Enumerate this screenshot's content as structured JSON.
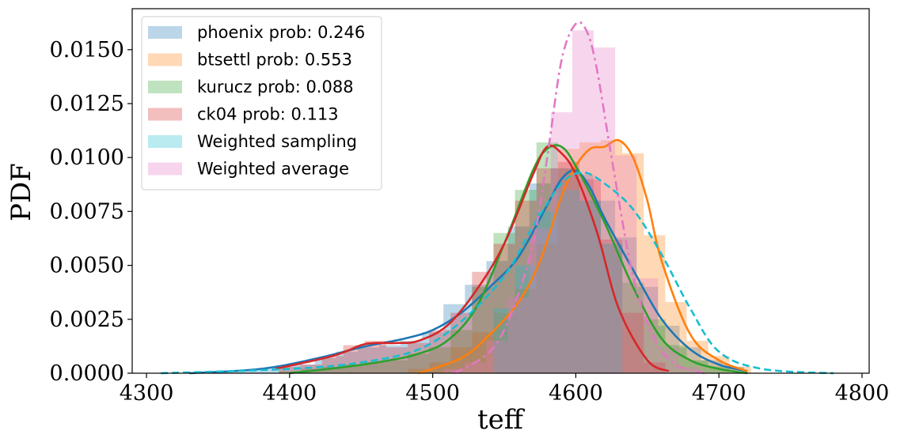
{
  "chart_data": {
    "type": "histogram+kde",
    "xlabel": "teff",
    "ylabel": "PDF",
    "xlim": [
      4290,
      4805
    ],
    "ylim": [
      0,
      0.0169
    ],
    "xticks": [
      "4300",
      "4400",
      "4500",
      "4600",
      "4700",
      "4800"
    ],
    "yticks": [
      "0.0000",
      "0.0025",
      "0.0050",
      "0.0075",
      "0.0100",
      "0.0125",
      "0.0150"
    ],
    "grid": false,
    "legend_position": "top-left",
    "series": [
      {
        "name": "phoenix prob: 0.246",
        "color": "#1f77b4",
        "hist": {
          "x": [
            4350,
            4365,
            4380,
            4395,
            4410,
            4425,
            4440,
            4455,
            4470,
            4485,
            4500,
            4515,
            4530,
            4545,
            4560,
            4575,
            4590,
            4605,
            4620,
            4635,
            4650,
            4665,
            4680,
            4695,
            4710
          ],
          "y": [
            0.0001,
            0.0001,
            0.0002,
            0.0003,
            0.0004,
            0.0007,
            0.001,
            0.0012,
            0.0013,
            0.0015,
            0.0019,
            0.0032,
            0.0041,
            0.0052,
            0.0068,
            0.0088,
            0.0095,
            0.0092,
            0.008,
            0.0063,
            0.004,
            0.0022,
            0.0012,
            0.0006,
            0.0003
          ]
        },
        "kde": {
          "x": [
            4330,
            4380,
            4420,
            4450,
            4480,
            4500,
            4520,
            4540,
            4560,
            4580,
            4590,
            4600,
            4610,
            4620,
            4640,
            4660,
            4680,
            4700,
            4720
          ],
          "y": [
            0.0,
            0.0002,
            0.0007,
            0.0012,
            0.0016,
            0.002,
            0.0028,
            0.004,
            0.0054,
            0.0078,
            0.009,
            0.0094,
            0.0086,
            0.0072,
            0.0048,
            0.0025,
            0.0011,
            0.0004,
            0.0001
          ]
        }
      },
      {
        "name": "btsettl prob: 0.553",
        "color": "#ff7f0e",
        "hist": {
          "x": [
            4490,
            4505,
            4520,
            4535,
            4550,
            4565,
            4580,
            4595,
            4610,
            4625,
            4640,
            4655,
            4670,
            4685,
            4700,
            4715
          ],
          "y": [
            0.0002,
            0.0005,
            0.0012,
            0.0019,
            0.0028,
            0.0039,
            0.006,
            0.0104,
            0.0107,
            0.0108,
            0.0102,
            0.0064,
            0.0033,
            0.0015,
            0.0008,
            0.0003
          ]
        },
        "kde": {
          "x": [
            4490,
            4520,
            4540,
            4560,
            4575,
            4590,
            4600,
            4610,
            4620,
            4630,
            4640,
            4650,
            4660,
            4680,
            4700,
            4720
          ],
          "y": [
            0.0,
            0.0007,
            0.0018,
            0.0033,
            0.0052,
            0.0082,
            0.0096,
            0.0104,
            0.0105,
            0.0108,
            0.01,
            0.008,
            0.0052,
            0.0018,
            0.0006,
            0.0001
          ]
        }
      },
      {
        "name": "kurucz prob: 0.088",
        "color": "#2ca02c",
        "hist": {
          "x": [
            4400,
            4415,
            4430,
            4445,
            4460,
            4475,
            4490,
            4505,
            4520,
            4535,
            4550,
            4565,
            4580,
            4595,
            4610,
            4625,
            4640,
            4655,
            4670,
            4685,
            4700
          ],
          "y": [
            0.0001,
            0.0002,
            0.0003,
            0.0004,
            0.0005,
            0.0006,
            0.0009,
            0.0012,
            0.002,
            0.004,
            0.0065,
            0.0085,
            0.0107,
            0.0095,
            0.008,
            0.006,
            0.0042,
            0.0025,
            0.0013,
            0.0006,
            0.0003
          ]
        },
        "kde": {
          "x": [
            4400,
            4440,
            4470,
            4490,
            4510,
            4530,
            4550,
            4570,
            4580,
            4590,
            4600,
            4620,
            4640,
            4660,
            4680,
            4700,
            4720
          ],
          "y": [
            0.0,
            0.0003,
            0.0006,
            0.0009,
            0.0015,
            0.003,
            0.006,
            0.0094,
            0.0104,
            0.0105,
            0.0096,
            0.007,
            0.004,
            0.0016,
            0.0006,
            0.0002,
            0.0
          ]
        }
      },
      {
        "name": "ck04 prob: 0.113",
        "color": "#d62728",
        "hist": {
          "x": [
            4400,
            4415,
            4430,
            4445,
            4460,
            4475,
            4490,
            4505,
            4520,
            4535,
            4550,
            4565,
            4580,
            4595,
            4610,
            4625,
            4640,
            4655
          ],
          "y": [
            0.0003,
            0.0004,
            0.0008,
            0.0013,
            0.0015,
            0.0012,
            0.0014,
            0.002,
            0.0028,
            0.0047,
            0.006,
            0.008,
            0.0095,
            0.0098,
            0.009,
            0.0062,
            0.0028,
            0.0005
          ]
        },
        "kde": {
          "x": [
            4390,
            4430,
            4450,
            4460,
            4475,
            4490,
            4510,
            4530,
            4550,
            4570,
            4580,
            4590,
            4600,
            4615,
            4630,
            4650,
            4665
          ],
          "y": [
            0.0002,
            0.0008,
            0.0013,
            0.0014,
            0.0014,
            0.0015,
            0.0022,
            0.0038,
            0.006,
            0.0092,
            0.0105,
            0.0102,
            0.0092,
            0.0065,
            0.003,
            0.0006,
            0.0001
          ]
        }
      },
      {
        "name": "Weighted sampling",
        "color": "#17becf",
        "hist": {
          "x": [
            4550,
            4565,
            4580,
            4595,
            4610,
            4625
          ],
          "y": [
            0.003,
            0.005,
            0.0075,
            0.0085,
            0.008,
            0.006
          ]
        },
        "kde": {
          "x": [
            4310,
            4400,
            4450,
            4490,
            4520,
            4550,
            4570,
            4590,
            4605,
            4620,
            4640,
            4660,
            4680,
            4700,
            4730,
            4780
          ],
          "y": [
            0.0,
            0.0002,
            0.0005,
            0.0011,
            0.0024,
            0.0045,
            0.0068,
            0.0088,
            0.0093,
            0.0088,
            0.0076,
            0.0055,
            0.003,
            0.001,
            0.0002,
            0.0
          ]
        }
      },
      {
        "name": "Weighted average",
        "color": "#e377c2",
        "hist": {
          "x": [
            4515,
            4530,
            4545,
            4560,
            4575,
            4590,
            4605,
            4620,
            4635,
            4650,
            4665,
            4680
          ],
          "y": [
            0.0002,
            0.0005,
            0.0015,
            0.0035,
            0.0067,
            0.0121,
            0.0159,
            0.0151,
            0.0101,
            0.0044,
            0.0012,
            0.0003
          ]
        },
        "kde": {
          "x": [
            4515,
            4540,
            4555,
            4570,
            4580,
            4590,
            4600,
            4608,
            4615,
            4625,
            4640,
            4655,
            4670,
            4690
          ],
          "y": [
            0.0,
            0.001,
            0.0028,
            0.006,
            0.01,
            0.0145,
            0.0162,
            0.0158,
            0.014,
            0.01,
            0.0045,
            0.0016,
            0.0004,
            0.0
          ]
        }
      }
    ]
  }
}
